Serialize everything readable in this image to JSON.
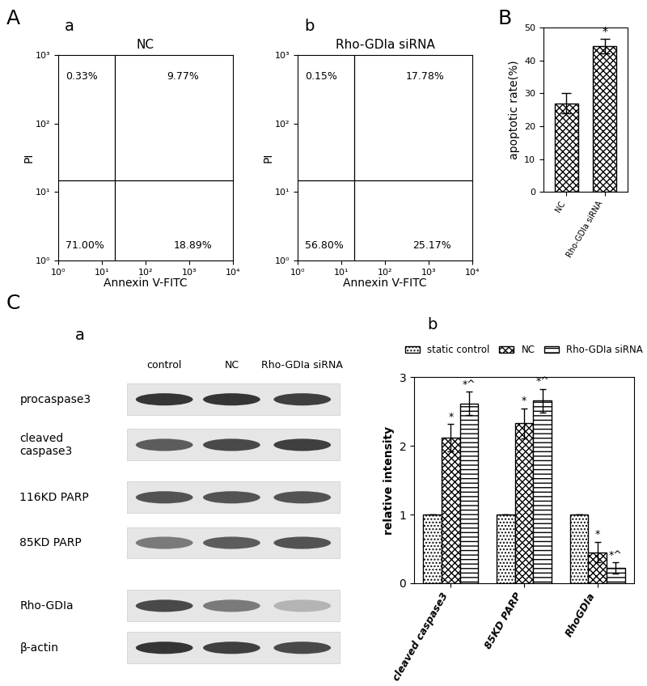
{
  "chart_data": [
    {
      "type": "quadrant",
      "panel": "A",
      "subpanel": "a",
      "title": "NC",
      "x_label": "Annexin V-FITC",
      "y_label": "PI",
      "log": true,
      "xlim": [
        1,
        10000
      ],
      "ylim": [
        1,
        1000
      ],
      "xticks": [
        {
          "value": 1,
          "label": "10⁰"
        },
        {
          "value": 10,
          "label": "10¹"
        },
        {
          "value": 100,
          "label": "10²"
        },
        {
          "value": 1000,
          "label": "10³"
        },
        {
          "value": 10000,
          "label": "10⁴"
        }
      ],
      "yticks": [
        {
          "value": 1,
          "label": "10⁰"
        },
        {
          "value": 10,
          "label": "10¹"
        },
        {
          "value": 100,
          "label": "10²"
        },
        {
          "value": 1000,
          "label": "10³"
        }
      ],
      "gate": {
        "x": 20,
        "y": 15
      },
      "quadrants": {
        "upper_left": {
          "value": 0.33,
          "label": "0.33%"
        },
        "upper_right": {
          "value": 9.77,
          "label": "9.77%"
        },
        "lower_left": {
          "value": 71.0,
          "label": "71.00%"
        },
        "lower_right": {
          "value": 18.89,
          "label": "18.89%"
        }
      }
    },
    {
      "type": "quadrant",
      "subpanel": "b",
      "title": "Rho-GDIa siRNA",
      "x_label": "Annexin V-FITC",
      "y_label": "PI",
      "log": true,
      "xlim": [
        1,
        10000
      ],
      "ylim": [
        1,
        1000
      ],
      "xticks": [
        {
          "value": 1,
          "label": "10⁰"
        },
        {
          "value": 10,
          "label": "10¹"
        },
        {
          "value": 100,
          "label": "10²"
        },
        {
          "value": 1000,
          "label": "10³"
        },
        {
          "value": 10000,
          "label": "10⁴"
        }
      ],
      "yticks": [
        {
          "value": 1,
          "label": "10⁰"
        },
        {
          "value": 10,
          "label": "10¹"
        },
        {
          "value": 100,
          "label": "10²"
        },
        {
          "value": 1000,
          "label": "10³"
        }
      ],
      "gate": {
        "x": 20,
        "y": 15
      },
      "quadrants": {
        "upper_left": {
          "value": 0.15,
          "label": "0.15%"
        },
        "upper_right": {
          "value": 17.78,
          "label": "17.78%"
        },
        "lower_left": {
          "value": 56.8,
          "label": "56.80%"
        },
        "lower_right": {
          "value": 25.17,
          "label": "25.17%"
        }
      }
    },
    {
      "type": "bar",
      "panel": "B",
      "y_label": "apoptotic rate(%)",
      "categories": [
        "NC",
        "Rho-GDIa siRNA"
      ],
      "values": [
        27,
        44.3
      ],
      "errors": [
        3,
        2.3
      ],
      "annotations": [
        null,
        "*"
      ],
      "color": "#ffffff",
      "ylim": [
        0,
        50
      ],
      "yticks": [
        0,
        10,
        20,
        30,
        40,
        50
      ]
    },
    {
      "type": "grouped_bar",
      "panel": "C",
      "subpanel": "b",
      "y_label": "relative intensity",
      "categories": [
        "cleaved caspase3",
        "85KD PARP",
        "RhoGDIa"
      ],
      "series": [
        {
          "name": "static control",
          "color": "#ffffff",
          "values": [
            1,
            1,
            1
          ],
          "errors": [
            0,
            0,
            0
          ],
          "annotations": [
            null,
            null,
            null
          ]
        },
        {
          "name": "NC",
          "color": "#ffffff",
          "values": [
            2.12,
            2.33,
            0.45
          ],
          "errors": [
            0.2,
            0.22,
            0.15
          ],
          "annotations": [
            "*",
            "*",
            "*"
          ]
        },
        {
          "name": "Rho-GDIa siRNA",
          "color": "#ffffff",
          "values": [
            2.62,
            2.66,
            0.22
          ],
          "errors": [
            0.17,
            0.17,
            0.08
          ],
          "annotations": [
            "*^",
            "*^",
            "*^"
          ]
        }
      ],
      "legend": "upper center",
      "ylim": [
        0,
        3
      ],
      "yticks": [
        0,
        1,
        2,
        3
      ]
    }
  ],
  "blot": {
    "subpanel": "a",
    "lanes": [
      "control",
      "NC",
      "Rho-GDIa siRNA"
    ],
    "rows": [
      "procaspase3",
      "cleaved\ncaspase3",
      "116KD PARP",
      "85KD PARP",
      "Rho-GDIa",
      "β-actin"
    ]
  }
}
